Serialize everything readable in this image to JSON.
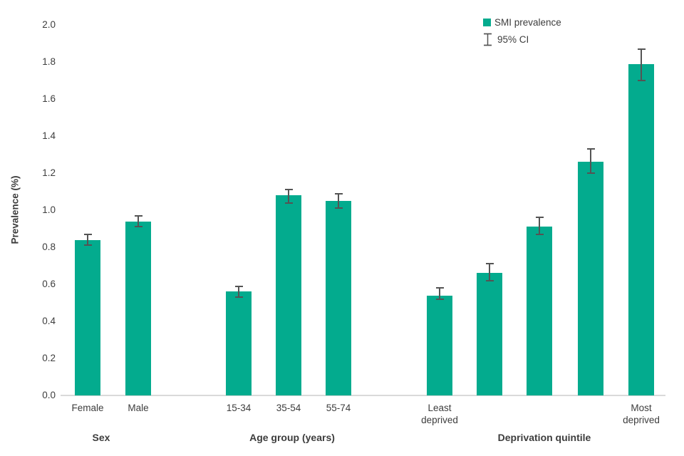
{
  "chart_data": {
    "type": "bar",
    "title": "",
    "ylabel": "Prevalence (%)",
    "ylim": [
      0.0,
      2.0
    ],
    "ytick_step": 0.2,
    "yticks": [
      2.0,
      1.8,
      1.6,
      1.4,
      1.2,
      1.0,
      0.8,
      0.6,
      0.4,
      0.2,
      0.0
    ],
    "grid": false,
    "legend_position": "top-right",
    "legend": [
      {
        "label": "SMI prevalence",
        "symbol": "square"
      },
      {
        "label": "95% CI",
        "symbol": "error-bar"
      }
    ],
    "colors": {
      "bar": "#03ab8e",
      "error": "#545454",
      "axis": "#d9d9d9",
      "text": "#3d3d3d"
    },
    "groups": [
      {
        "label": "Sex",
        "bars": [
          {
            "label": "Female",
            "value": 0.84,
            "ci_low": 0.81,
            "ci_high": 0.87
          },
          {
            "label": "Male",
            "value": 0.94,
            "ci_low": 0.91,
            "ci_high": 0.97
          }
        ]
      },
      {
        "label": "Age group (years)",
        "bars": [
          {
            "label": "15-34",
            "value": 0.56,
            "ci_low": 0.53,
            "ci_high": 0.59
          },
          {
            "label": "35-54",
            "value": 1.08,
            "ci_low": 1.04,
            "ci_high": 1.11
          },
          {
            "label": "55-74",
            "value": 1.05,
            "ci_low": 1.01,
            "ci_high": 1.09
          }
        ]
      },
      {
        "label": "Deprivation quintile",
        "bars": [
          {
            "label": "Least\ndeprived",
            "value": 0.54,
            "ci_low": 0.52,
            "ci_high": 0.58
          },
          {
            "label": "",
            "value": 0.66,
            "ci_low": 0.62,
            "ci_high": 0.71
          },
          {
            "label": "",
            "value": 0.91,
            "ci_low": 0.87,
            "ci_high": 0.96
          },
          {
            "label": "",
            "value": 1.26,
            "ci_low": 1.2,
            "ci_high": 1.33
          },
          {
            "label": "Most\ndeprived",
            "value": 1.79,
            "ci_low": 1.7,
            "ci_high": 1.87
          }
        ]
      }
    ]
  }
}
